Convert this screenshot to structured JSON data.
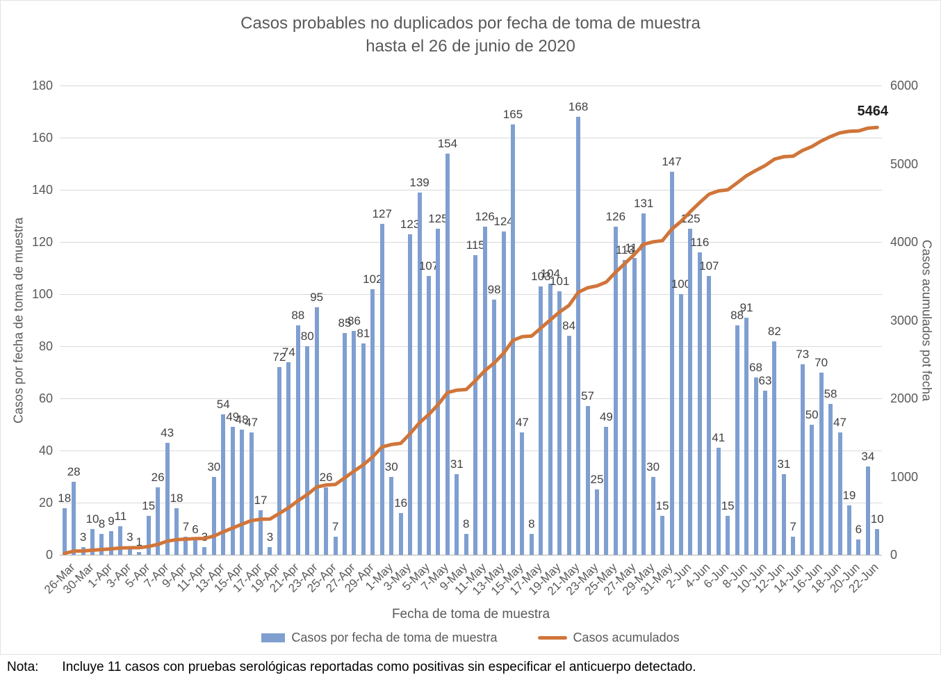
{
  "title": {
    "line1": "Casos probables no duplicados por fecha de toma de muestra",
    "line2": "hasta el 26 de junio de 2020"
  },
  "axes": {
    "left": {
      "title": "Casos por fecha de toma de muestra",
      "ticks": [
        "0",
        "20",
        "40",
        "60",
        "80",
        "100",
        "120",
        "140",
        "160",
        "180"
      ],
      "range": [
        0,
        180
      ]
    },
    "right": {
      "title": "Casos acumulados pot fecha",
      "ticks": [
        "0",
        "1000",
        "2000",
        "3000",
        "4000",
        "5000",
        "6000"
      ],
      "range": [
        0,
        6000
      ]
    },
    "x": {
      "title": "Fecha de toma de muestra",
      "label_every_n_bars": 2,
      "tick_labels": [
        "26-Mar",
        "30-Mar",
        "1-Apr",
        "3-Apr",
        "5-Apr",
        "7-Apr",
        "9-Apr",
        "11-Apr",
        "13-Apr",
        "15-Apr",
        "17-Apr",
        "19-Apr",
        "21-Apr",
        "23-Apr",
        "25-Apr",
        "27-Apr",
        "29-Apr",
        "1-May",
        "3-May",
        "5-May",
        "7-May",
        "9-May",
        "11-May",
        "13-May",
        "15-May",
        "17-May",
        "19-May",
        "21-May",
        "23-May",
        "25-May",
        "27-May",
        "29-May",
        "31-May",
        "2-Jun",
        "4-Jun",
        "6-Jun",
        "8-Jun",
        "10-Jun",
        "12-Jun",
        "14-Jun",
        "16-Jun",
        "18-Jun",
        "20-Jun",
        "22-Jun"
      ]
    }
  },
  "legend": {
    "bars_label": "Casos por fecha de toma de muestra",
    "line_label": "Casos acumulados"
  },
  "annotation": {
    "final_cumulative": "5464"
  },
  "note": {
    "prefix": "Nota:",
    "text": "Incluye 11 casos con pruebas serológicas reportadas como positivas sin especificar el anticuerpo detectado."
  },
  "colors": {
    "bar": "#7f9fd1",
    "line": "#d0753a",
    "grid": "#d9d9d9",
    "axis_text": "#595959",
    "title_text": "#595959",
    "bar_label_text": "#404040"
  },
  "chart_data": {
    "type": "bar",
    "title": "Casos probables no duplicados por fecha de toma de muestra hasta el 26 de junio de 2020",
    "xlabel": "Fecha de toma de muestra",
    "ylabel_left": "Casos por fecha de toma de muestra",
    "ylabel_right": "Casos acumulados pot fecha",
    "ylim_left": [
      0,
      180
    ],
    "ylim_right": [
      0,
      6000
    ],
    "grid": "horizontal",
    "legend_position": "bottom",
    "x_tick_labels_shown_every_2_bars": [
      "26-Mar",
      "30-Mar",
      "1-Apr",
      "3-Apr",
      "5-Apr",
      "7-Apr",
      "9-Apr",
      "11-Apr",
      "13-Apr",
      "15-Apr",
      "17-Apr",
      "19-Apr",
      "21-Apr",
      "23-Apr",
      "25-Apr",
      "27-Apr",
      "29-Apr",
      "1-May",
      "3-May",
      "5-May",
      "7-May",
      "9-May",
      "11-May",
      "13-May",
      "15-May",
      "17-May",
      "19-May",
      "21-May",
      "23-May",
      "25-May",
      "27-May",
      "29-May",
      "31-May",
      "2-Jun",
      "4-Jun",
      "6-Jun",
      "8-Jun",
      "10-Jun",
      "12-Jun",
      "14-Jun",
      "16-Jun",
      "18-Jun",
      "20-Jun",
      "22-Jun"
    ],
    "series": [
      {
        "name": "Casos por fecha de toma de muestra",
        "type": "bar",
        "y_axis": "left",
        "data_labels": true,
        "values": [
          18,
          28,
          3,
          10,
          8,
          9,
          11,
          3,
          1,
          15,
          26,
          43,
          18,
          7,
          6,
          3,
          30,
          54,
          49,
          48,
          47,
          17,
          3,
          72,
          74,
          88,
          80,
          95,
          26,
          7,
          85,
          86,
          81,
          102,
          127,
          30,
          16,
          123,
          139,
          107,
          125,
          154,
          31,
          8,
          115,
          126,
          98,
          124,
          165,
          47,
          8,
          103,
          104,
          101,
          84,
          168,
          57,
          25,
          49,
          126,
          113,
          114,
          131,
          30,
          15,
          147,
          100,
          125,
          116,
          107,
          41,
          15,
          88,
          91,
          68,
          63,
          82,
          31,
          7,
          73,
          50,
          70,
          58,
          47,
          19,
          6,
          34,
          10
        ]
      },
      {
        "name": "Casos acumulados",
        "type": "line",
        "y_axis": "right",
        "end_label": 5464,
        "values": [
          18,
          46,
          49,
          59,
          67,
          76,
          87,
          90,
          91,
          106,
          132,
          175,
          193,
          200,
          206,
          209,
          239,
          293,
          342,
          390,
          437,
          454,
          457,
          529,
          603,
          691,
          771,
          866,
          892,
          899,
          984,
          1070,
          1151,
          1253,
          1380,
          1410,
          1426,
          1549,
          1688,
          1795,
          1920,
          2074,
          2105,
          2113,
          2228,
          2354,
          2452,
          2576,
          2741,
          2788,
          2796,
          2899,
          3003,
          3104,
          3188,
          3356,
          3413,
          3438,
          3487,
          3613,
          3726,
          3840,
          3971,
          4001,
          4016,
          4163,
          4263,
          4388,
          4504,
          4611,
          4652,
          4667,
          4755,
          4846,
          4914,
          4977,
          5059,
          5090,
          5097,
          5170,
          5220,
          5290,
          5348,
          5395,
          5414,
          5420,
          5454,
          5464
        ]
      }
    ]
  }
}
